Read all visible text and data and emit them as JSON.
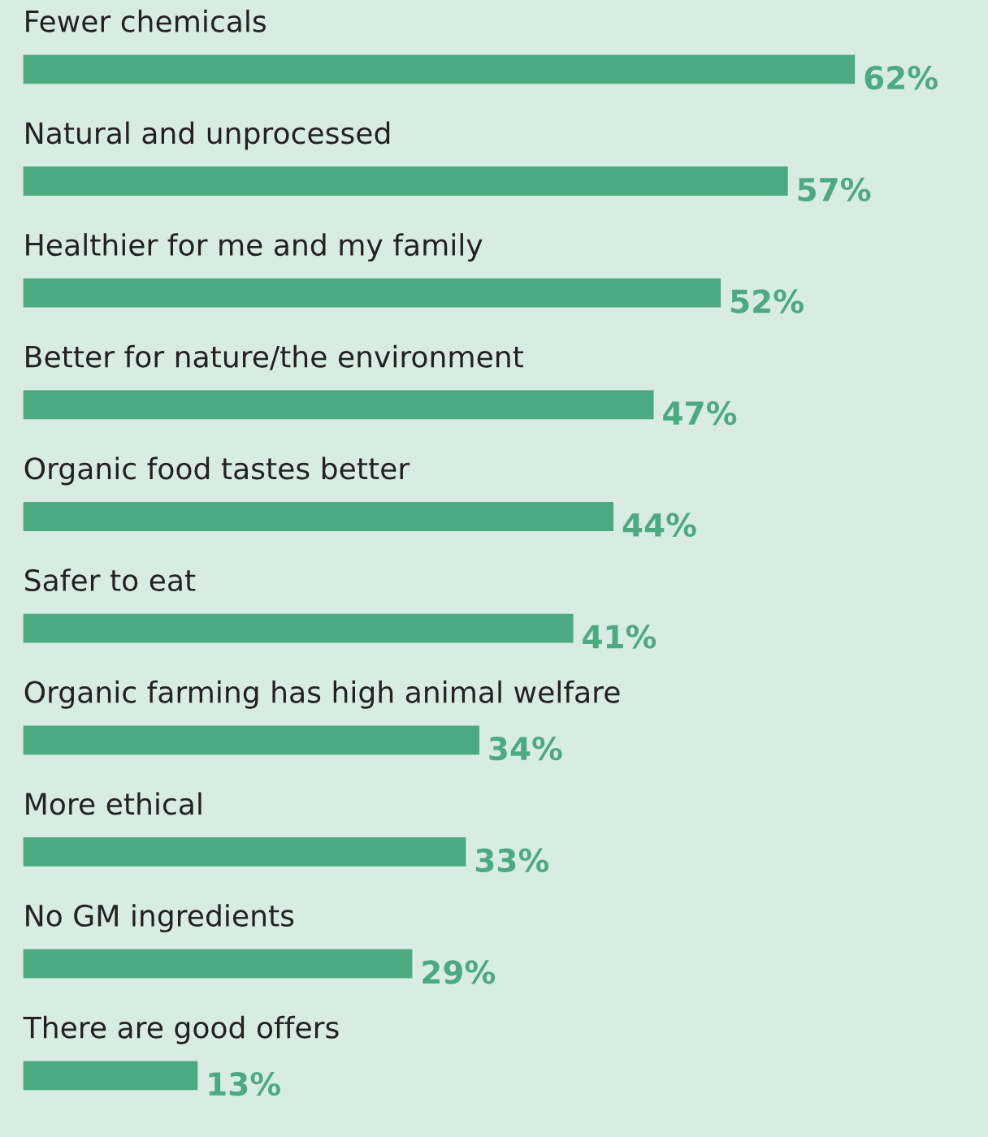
{
  "chart_data": {
    "type": "bar",
    "orientation": "horizontal",
    "value_labels": [
      "62%",
      "57%",
      "52%",
      "47%",
      "44%",
      "41%",
      "34%",
      "33%",
      "29%",
      "13%"
    ],
    "categories": [
      "Fewer chemicals",
      "Natural and unprocessed",
      "Healthier for me and my family",
      "Better for nature/the environment",
      "Organic food tastes better",
      "Safer to eat",
      "Organic farming has high animal welfare",
      "More ethical",
      "No GM ingredients",
      "There are good offers"
    ],
    "values": [
      62,
      57,
      52,
      47,
      44,
      41,
      34,
      33,
      29,
      13
    ],
    "color": "#4caa82"
  }
}
